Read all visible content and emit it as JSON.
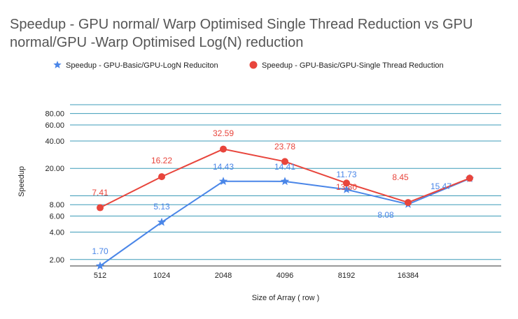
{
  "chart_data": {
    "type": "line",
    "title": "Speedup  - GPU normal/ Warp Optimised Single Thread Reduction vs GPU normal/GPU -Warp Optimised Log(N) reduction",
    "xlabel": "Size of Array ( row )",
    "ylabel": "Speedup",
    "y_scale": "log",
    "ylim": [
      1.7,
      100
    ],
    "y_ticks": [
      "2.00",
      "4.00",
      "6.00",
      "8.00",
      "20.00",
      "40.00",
      "60.00",
      "80.00"
    ],
    "categories": [
      "512",
      "1024",
      "2048",
      "4096",
      "8192",
      "16384",
      ""
    ],
    "legend_position": "top",
    "grid": true,
    "series": [
      {
        "name": "Speedup - GPU-Basic/GPU-LogN Reduciton",
        "color": "#4a86e8",
        "marker": "star",
        "values": [
          1.7,
          5.13,
          14.43,
          14.41,
          11.73,
          8.08,
          15.47
        ],
        "labels": [
          "1.70",
          "5.13",
          "14.43",
          "14.41",
          "11.73",
          "8.08",
          "15.47"
        ]
      },
      {
        "name": "Speedup - GPU-Basic/GPU-Single Thread Reduction",
        "color": "#e8453c",
        "marker": "circle",
        "values": [
          7.41,
          16.22,
          32.59,
          23.78,
          13.8,
          8.45,
          15.61
        ],
        "labels": [
          "7.41",
          "16.22",
          "32.59",
          "23.78",
          "13.80",
          "8.45",
          "15.61"
        ]
      }
    ]
  }
}
